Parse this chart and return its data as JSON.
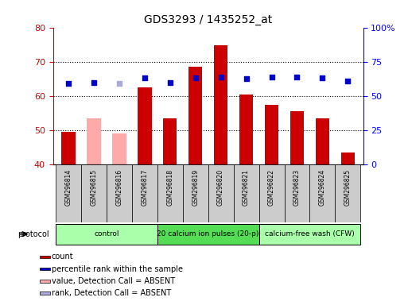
{
  "title": "GDS3293 / 1435252_at",
  "samples": [
    "GSM296814",
    "GSM296815",
    "GSM296816",
    "GSM296817",
    "GSM296818",
    "GSM296819",
    "GSM296820",
    "GSM296821",
    "GSM296822",
    "GSM296823",
    "GSM296824",
    "GSM296825"
  ],
  "bar_values": [
    49.5,
    53.5,
    49.0,
    62.5,
    53.5,
    68.5,
    74.8,
    60.5,
    57.5,
    55.5,
    53.5,
    43.5
  ],
  "bar_absent": [
    false,
    true,
    true,
    false,
    false,
    false,
    false,
    false,
    false,
    false,
    false,
    false
  ],
  "percentile_values": [
    59.0,
    60.0,
    59.0,
    63.5,
    60.0,
    63.0,
    64.0,
    62.5,
    64.0,
    64.0,
    63.0,
    61.0
  ],
  "percentile_absent": [
    false,
    false,
    true,
    false,
    false,
    false,
    false,
    false,
    false,
    false,
    false,
    false
  ],
  "ylim_left": [
    40,
    80
  ],
  "ylim_right": [
    0,
    100
  ],
  "bar_color_present": "#cc0000",
  "bar_color_absent": "#ffaaaa",
  "dot_color_present": "#0000cc",
  "dot_color_absent": "#aaaadd",
  "protocol_groups": [
    {
      "label": "control",
      "start": 0,
      "end": 4,
      "color": "#aaffaa"
    },
    {
      "label": "20 calcium ion pulses (20-p)",
      "start": 4,
      "end": 8,
      "color": "#55dd55"
    },
    {
      "label": "calcium-free wash (CFW)",
      "start": 8,
      "end": 12,
      "color": "#aaffaa"
    }
  ],
  "legend_items": [
    {
      "label": "count",
      "color": "#cc0000"
    },
    {
      "label": "percentile rank within the sample",
      "color": "#0000cc"
    },
    {
      "label": "value, Detection Call = ABSENT",
      "color": "#ffaaaa"
    },
    {
      "label": "rank, Detection Call = ABSENT",
      "color": "#aaaadd"
    }
  ],
  "yticks_left": [
    40,
    50,
    60,
    70,
    80
  ],
  "yticks_right": [
    0,
    25,
    50,
    75,
    100
  ],
  "background_color": "#ffffff"
}
